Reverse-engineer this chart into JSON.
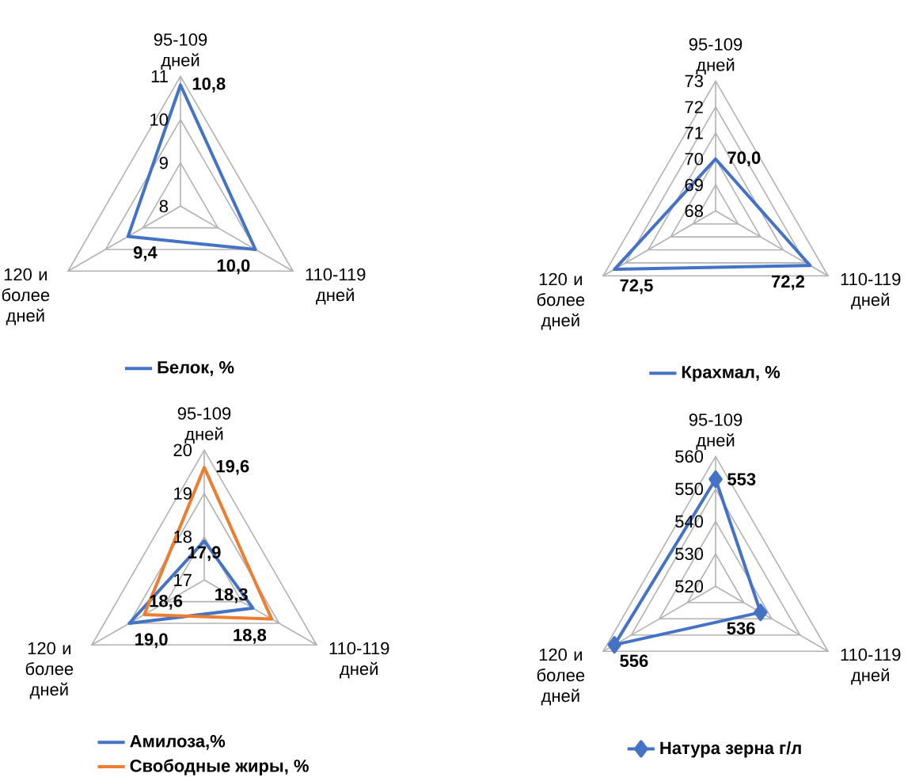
{
  "chart_data": [
    {
      "type": "radar",
      "categories": [
        "95-109 дней",
        "110-119 дней",
        "120 и более дней"
      ],
      "ylim": [
        8,
        11
      ],
      "yticks": [
        8,
        9,
        10,
        11
      ],
      "grid": true,
      "legend": "bottom",
      "series": [
        {
          "name": "Белок, %",
          "color": "#4472c4",
          "values": [
            10.8,
            10.0,
            9.4
          ],
          "value_labels": [
            "10,8",
            "10,0",
            "9,4"
          ]
        }
      ]
    },
    {
      "type": "radar",
      "categories": [
        "95-109 дней",
        "110-119 дней",
        "120 и более дней"
      ],
      "ylim": [
        68,
        73
      ],
      "yticks": [
        68,
        69,
        70,
        71,
        72,
        73
      ],
      "grid": true,
      "legend": "bottom",
      "series": [
        {
          "name": "Крахмал, %",
          "color": "#4472c4",
          "values": [
            70.0,
            72.2,
            72.5
          ],
          "value_labels": [
            "70,0",
            "72,2",
            "72,5"
          ]
        }
      ]
    },
    {
      "type": "radar",
      "categories": [
        "95-109 дней",
        "110-119 дней",
        "120 и более дней"
      ],
      "ylim": [
        17,
        20
      ],
      "yticks": [
        17,
        18,
        19,
        20
      ],
      "grid": true,
      "legend": "bottom",
      "series": [
        {
          "name": "Амилоза,%",
          "color": "#4472c4",
          "values": [
            17.9,
            18.3,
            19.0
          ],
          "value_labels": [
            "17,9",
            "18,3",
            "19,0"
          ]
        },
        {
          "name": "Свободные жиры, %",
          "color": "#ed7d31",
          "values": [
            19.6,
            18.8,
            18.6
          ],
          "value_labels": [
            "19,6",
            "18,8",
            "18,6"
          ]
        }
      ]
    },
    {
      "type": "radar",
      "categories": [
        "95-109 дней",
        "110-119 дней",
        "120 и более дней"
      ],
      "ylim": [
        520,
        560
      ],
      "yticks": [
        520,
        530,
        540,
        550,
        560
      ],
      "grid": true,
      "legend": "bottom",
      "marker": "diamond",
      "data_labels": true,
      "series": [
        {
          "name": "Натура зерна г/л",
          "color": "#4472c4",
          "values": [
            553,
            536,
            556
          ]
        }
      ]
    }
  ]
}
